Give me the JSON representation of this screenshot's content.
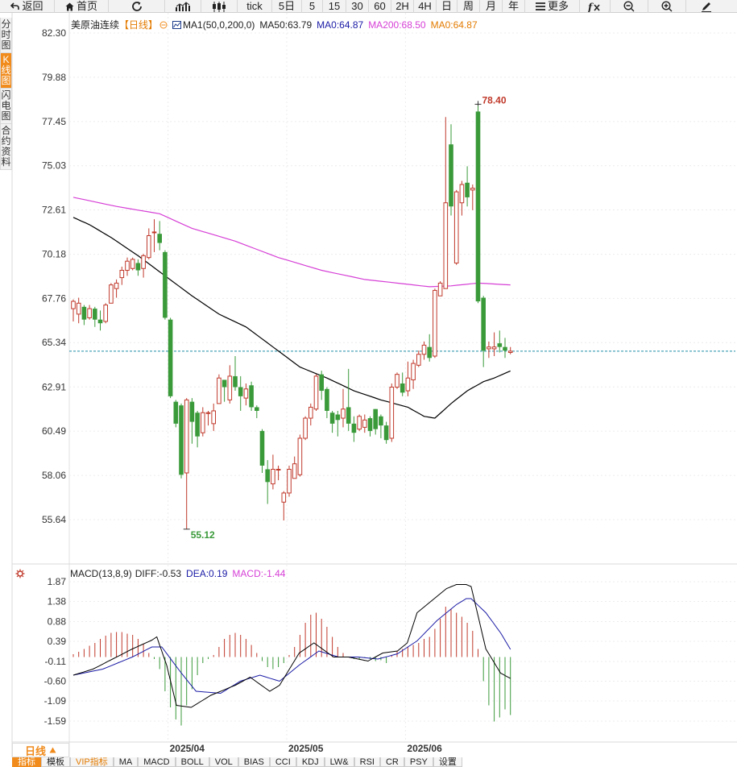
{
  "toolbar": {
    "back": "返回",
    "home": "首页",
    "tick": "tick",
    "periods": [
      "5日",
      "5",
      "15",
      "30",
      "60",
      "2H",
      "4H",
      "日",
      "周",
      "月",
      "年"
    ],
    "more": "更多"
  },
  "side_tabs": [
    {
      "label": "分时图",
      "active": false
    },
    {
      "label": "K线图",
      "active": true
    },
    {
      "label": "闪电图",
      "active": false
    },
    {
      "label": "合约资料",
      "active": false
    }
  ],
  "legend_main": {
    "name": "美原油连续",
    "period": "【日线】",
    "indicator": "MA1(50,0,200,0)",
    "ma50": "MA50:63.79",
    "ma": "MA0:64.87",
    "ma200": "MA200:68.50",
    "ma0": "MA0:64.87"
  },
  "legend_macd": {
    "name": "MACD(13,8,9)",
    "diff": "DIFF:-0.53",
    "dea": "DEA:0.19",
    "macd": "MACD:-1.44"
  },
  "colors": {
    "up": "#c0392b",
    "down": "#3a9a3a",
    "ma50": "#000000",
    "ma200": "#d63fd6",
    "diff": "#000000",
    "dea": "#1a1aa6",
    "last_price": "#1f8fa6",
    "accent": "#f08b1c"
  },
  "chart_data": {
    "type": "candlestick",
    "price_ticks": [
      "82.30",
      "79.88",
      "77.45",
      "75.03",
      "72.61",
      "70.18",
      "67.76",
      "65.34",
      "62.91",
      "60.49",
      "58.06",
      "55.64"
    ],
    "ylim": [
      55.64,
      82.3
    ],
    "high_label": "78.40",
    "low_label": "55.12",
    "last_price": 64.87,
    "date_labels": [
      "2025/04",
      "2025/05",
      "2025/06"
    ],
    "candles": [
      [
        67.2,
        67.6,
        66.5,
        67.7
      ],
      [
        66.9,
        67.5,
        66.4,
        67.8
      ],
      [
        67.3,
        66.6,
        66.3,
        67.4
      ],
      [
        66.7,
        67.2,
        66.6,
        67.4
      ],
      [
        67.2,
        66.6,
        66.2,
        67.3
      ],
      [
        66.6,
        66.4,
        66.0,
        67.1
      ],
      [
        66.5,
        67.4,
        66.4,
        67.5
      ],
      [
        67.5,
        68.5,
        67.5,
        68.6
      ],
      [
        68.3,
        68.6,
        67.8,
        68.8
      ],
      [
        68.9,
        69.3,
        68.5,
        69.5
      ],
      [
        69.3,
        69.8,
        69.0,
        70.0
      ],
      [
        69.4,
        69.9,
        69.3,
        70.0
      ],
      [
        69.7,
        69.3,
        69.0,
        69.9
      ],
      [
        69.4,
        70.1,
        68.9,
        70.2
      ],
      [
        70.0,
        71.2,
        69.9,
        71.6
      ],
      [
        71.4,
        71.4,
        70.3,
        72.1
      ],
      [
        71.3,
        70.8,
        70.4,
        72.0
      ],
      [
        70.3,
        66.7,
        66.6,
        70.4
      ],
      [
        66.6,
        62.4,
        62.3,
        66.7
      ],
      [
        62.1,
        60.9,
        60.7,
        62.2
      ],
      [
        61.9,
        58.1,
        57.9,
        62.0
      ],
      [
        58.2,
        62.2,
        55.12,
        62.3
      ],
      [
        62.1,
        61.0,
        59.8,
        62.3
      ],
      [
        61.5,
        60.2,
        59.6,
        61.6
      ],
      [
        60.4,
        61.5,
        60.2,
        61.8
      ],
      [
        61.5,
        61.5,
        60.8,
        61.6
      ],
      [
        60.9,
        61.6,
        60.5,
        62.0
      ],
      [
        62.0,
        63.4,
        62.0,
        63.6
      ],
      [
        63.3,
        62.9,
        62.1,
        63.3
      ],
      [
        62.2,
        63.5,
        62.0,
        64.1
      ],
      [
        63.5,
        62.9,
        62.7,
        64.6
      ],
      [
        62.9,
        62.4,
        61.6,
        63.5
      ],
      [
        62.3,
        62.8,
        61.9,
        63.1
      ],
      [
        63.0,
        61.8,
        61.6,
        63.2
      ],
      [
        61.8,
        61.6,
        61.2,
        61.9
      ],
      [
        60.5,
        58.6,
        58.2,
        60.6
      ],
      [
        58.4,
        57.7,
        56.5,
        58.9
      ],
      [
        57.6,
        58.4,
        57.3,
        59.2
      ],
      [
        58.4,
        58.4,
        57.8,
        58.6
      ],
      [
        56.6,
        57.1,
        55.6,
        57.2
      ],
      [
        57.1,
        58.4,
        56.9,
        58.6
      ],
      [
        57.9,
        58.7,
        57.9,
        59.1
      ],
      [
        58.1,
        60.1,
        58.0,
        60.3
      ],
      [
        60.1,
        61.2,
        60.0,
        61.3
      ],
      [
        61.2,
        61.8,
        60.8,
        62.0
      ],
      [
        61.7,
        63.5,
        61.6,
        63.6
      ],
      [
        63.6,
        62.7,
        62.2,
        63.8
      ],
      [
        62.8,
        61.6,
        61.2,
        62.9
      ],
      [
        61.5,
        60.9,
        60.4,
        61.6
      ],
      [
        61.4,
        61.1,
        60.2,
        61.6
      ],
      [
        61.2,
        61.7,
        60.7,
        62.8
      ],
      [
        61.8,
        60.9,
        60.5,
        63.9
      ],
      [
        60.9,
        60.4,
        59.9,
        61.3
      ],
      [
        60.6,
        61.3,
        60.5,
        61.4
      ],
      [
        60.7,
        61.1,
        60.4,
        61.4
      ],
      [
        61.2,
        60.5,
        60.2,
        61.3
      ],
      [
        61.7,
        60.6,
        60.3,
        61.7
      ],
      [
        61.3,
        60.8,
        60.1,
        61.4
      ],
      [
        60.8,
        60.0,
        59.8,
        61.0
      ],
      [
        60.1,
        62.9,
        59.9,
        63.1
      ],
      [
        62.9,
        63.6,
        62.8,
        63.7
      ],
      [
        63.1,
        62.6,
        62.4,
        63.7
      ],
      [
        62.7,
        63.4,
        62.4,
        64.3
      ],
      [
        63.3,
        64.2,
        62.8,
        64.4
      ],
      [
        64.1,
        64.7,
        64.0,
        64.9
      ],
      [
        64.7,
        65.2,
        64.4,
        65.4
      ],
      [
        65.1,
        64.5,
        64.3,
        65.8
      ],
      [
        64.6,
        68.2,
        64.5,
        68.3
      ],
      [
        67.9,
        68.6,
        67.9,
        68.7
      ],
      [
        68.3,
        73.0,
        68.3,
        77.7
      ],
      [
        76.2,
        72.8,
        72.3,
        77.3
      ],
      [
        69.7,
        73.6,
        69.6,
        73.7
      ],
      [
        73.0,
        74.0,
        72.3,
        74.2
      ],
      [
        74.1,
        73.3,
        72.8,
        75.0
      ],
      [
        73.7,
        73.8,
        72.6,
        74.0
      ],
      [
        78.0,
        67.6,
        67.5,
        78.4
      ],
      [
        67.8,
        64.9,
        64.0,
        67.9
      ],
      [
        65.0,
        65.1,
        64.5,
        65.4
      ],
      [
        65.0,
        65.1,
        64.6,
        65.9
      ],
      [
        65.3,
        65.1,
        64.8,
        66.0
      ],
      [
        65.1,
        64.9,
        64.5,
        65.6
      ],
      [
        64.8,
        64.87,
        64.7,
        65.1
      ]
    ],
    "ma50_points": [
      [
        0,
        72.2
      ],
      [
        3,
        71.8
      ],
      [
        7,
        71.1
      ],
      [
        12,
        70.1
      ],
      [
        17,
        69.0
      ],
      [
        22,
        67.9
      ],
      [
        27,
        66.9
      ],
      [
        32,
        66.2
      ],
      [
        37,
        65.1
      ],
      [
        42,
        64.0
      ],
      [
        47,
        63.4
      ],
      [
        52,
        62.7
      ],
      [
        57,
        62.2
      ],
      [
        62,
        61.8
      ],
      [
        65,
        61.3
      ],
      [
        67,
        61.2
      ],
      [
        70,
        62.0
      ],
      [
        73,
        62.7
      ],
      [
        76,
        63.2
      ],
      [
        78,
        63.4
      ],
      [
        81,
        63.79
      ]
    ],
    "ma200_points": [
      [
        0,
        73.3
      ],
      [
        8,
        72.8
      ],
      [
        16,
        72.4
      ],
      [
        22,
        71.6
      ],
      [
        30,
        70.9
      ],
      [
        38,
        70.0
      ],
      [
        46,
        69.3
      ],
      [
        54,
        68.8
      ],
      [
        60,
        68.6
      ],
      [
        66,
        68.4
      ],
      [
        70,
        68.45
      ],
      [
        75,
        68.6
      ],
      [
        81,
        68.5
      ]
    ],
    "macd_ticks": [
      "1.87",
      "1.38",
      "0.88",
      "0.39",
      "-0.11",
      "-0.60",
      "-1.09",
      "-1.59"
    ],
    "macd_ylim": [
      -1.59,
      1.87
    ],
    "macd_hist": [
      0.07,
      0.13,
      0.2,
      0.28,
      0.35,
      0.45,
      0.53,
      0.6,
      0.62,
      0.62,
      0.58,
      0.55,
      0.45,
      0.32,
      0.1,
      -0.05,
      -0.3,
      -0.85,
      -1.25,
      -1.55,
      -1.7,
      -1.2,
      -0.8,
      -0.45,
      -0.15,
      -0.05,
      0.05,
      0.25,
      0.45,
      0.55,
      0.6,
      0.55,
      0.45,
      0.3,
      0.1,
      -0.1,
      -0.25,
      -0.3,
      -0.25,
      -0.15,
      0.05,
      0.25,
      0.55,
      0.85,
      1.05,
      1.1,
      0.95,
      0.75,
      0.5,
      0.25,
      0.1,
      0.0,
      -0.05,
      -0.05,
      -0.02,
      -0.05,
      -0.1,
      -0.08,
      -0.15,
      0.05,
      0.15,
      0.2,
      0.25,
      0.3,
      0.35,
      0.45,
      0.5,
      0.7,
      0.95,
      1.25,
      1.2,
      1.1,
      1.0,
      0.85,
      0.65,
      0.2,
      -0.6,
      -1.2,
      -1.6,
      -1.5,
      -1.3,
      -1.44
    ],
    "diff_points": [
      [
        0,
        -0.45
      ],
      [
        4,
        -0.3
      ],
      [
        8,
        -0.05
      ],
      [
        12,
        0.2
      ],
      [
        16,
        0.42
      ],
      [
        17,
        0.5
      ],
      [
        19,
        -0.2
      ],
      [
        21,
        -1.2
      ],
      [
        24,
        -1.25
      ],
      [
        28,
        -0.95
      ],
      [
        33,
        -0.7
      ],
      [
        36,
        -0.5
      ],
      [
        40,
        -0.85
      ],
      [
        42,
        -0.7
      ],
      [
        46,
        0.1
      ],
      [
        49,
        0.35
      ],
      [
        53,
        0.0
      ],
      [
        56,
        0.0
      ],
      [
        60,
        -0.1
      ],
      [
        63,
        0.1
      ],
      [
        66,
        0.15
      ],
      [
        68,
        0.35
      ],
      [
        70,
        1.1
      ],
      [
        72,
        1.3
      ],
      [
        76,
        1.7
      ],
      [
        78,
        1.8
      ],
      [
        80,
        1.8
      ],
      [
        81,
        1.75
      ],
      [
        84,
        0.2
      ],
      [
        87,
        -0.4
      ],
      [
        89,
        -0.53
      ]
    ],
    "dea_points": [
      [
        0,
        -0.45
      ],
      [
        6,
        -0.3
      ],
      [
        12,
        0.0
      ],
      [
        16,
        0.25
      ],
      [
        18,
        0.25
      ],
      [
        22,
        -0.4
      ],
      [
        25,
        -0.85
      ],
      [
        30,
        -0.9
      ],
      [
        34,
        -0.6
      ],
      [
        38,
        -0.45
      ],
      [
        42,
        -0.6
      ],
      [
        46,
        -0.2
      ],
      [
        50,
        0.15
      ],
      [
        54,
        0.0
      ],
      [
        58,
        0.0
      ],
      [
        62,
        -0.05
      ],
      [
        66,
        0.08
      ],
      [
        70,
        0.4
      ],
      [
        74,
        0.9
      ],
      [
        78,
        1.3
      ],
      [
        80,
        1.45
      ],
      [
        81,
        1.45
      ],
      [
        84,
        1.1
      ],
      [
        87,
        0.6
      ],
      [
        89,
        0.19
      ]
    ]
  },
  "period_selector": {
    "label": "日线"
  },
  "indicator_tabs": [
    "指标",
    "模板",
    "VIP指标",
    "MA",
    "MACD",
    "BOLL",
    "VOL",
    "BIAS",
    "CCI",
    "KDJ",
    "LW&",
    "RSI",
    "CR",
    "PSY",
    "设置"
  ]
}
